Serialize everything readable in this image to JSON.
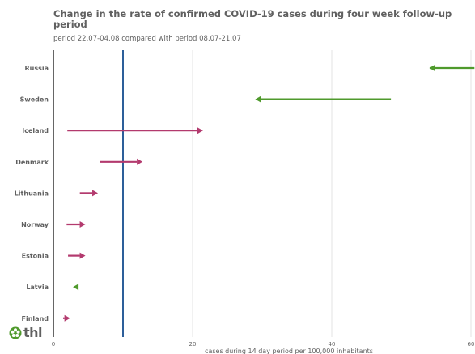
{
  "chart_data": {
    "type": "dumbbell-arrow",
    "title": "Change in the rate of confirmed COVID-19 cases during four week follow-up period",
    "subtitle": "period 22.07-04.08 compared with period 08.07-21.07",
    "xlabel": "cases during 14 day period per 100,000 inhabitants",
    "xlim": [
      0,
      60
    ],
    "x_ticks": [
      0,
      20,
      40,
      60
    ],
    "reference_line": 10,
    "grid": true,
    "colors": {
      "increase": "#b33a6e",
      "decrease": "#4f9a2c",
      "reference": "#2d5f9a",
      "axis": "#333333",
      "grid": "#e3e3e3"
    },
    "series": [
      {
        "category": "Russia",
        "from": 60.5,
        "to": 54.0
      },
      {
        "category": "Sweden",
        "from": 48.5,
        "to": 29.0
      },
      {
        "category": "Iceland",
        "from": 2.0,
        "to": 21.5
      },
      {
        "category": "Denmark",
        "from": 6.7,
        "to": 12.8
      },
      {
        "category": "Lithuania",
        "from": 3.8,
        "to": 6.4
      },
      {
        "category": "Norway",
        "from": 1.9,
        "to": 4.6
      },
      {
        "category": "Estonia",
        "from": 2.1,
        "to": 4.6
      },
      {
        "category": "Latvia",
        "from": 3.4,
        "to": 2.8
      },
      {
        "category": "Finland",
        "from": 1.4,
        "to": 2.4
      }
    ]
  },
  "logo": {
    "text": "thl"
  }
}
